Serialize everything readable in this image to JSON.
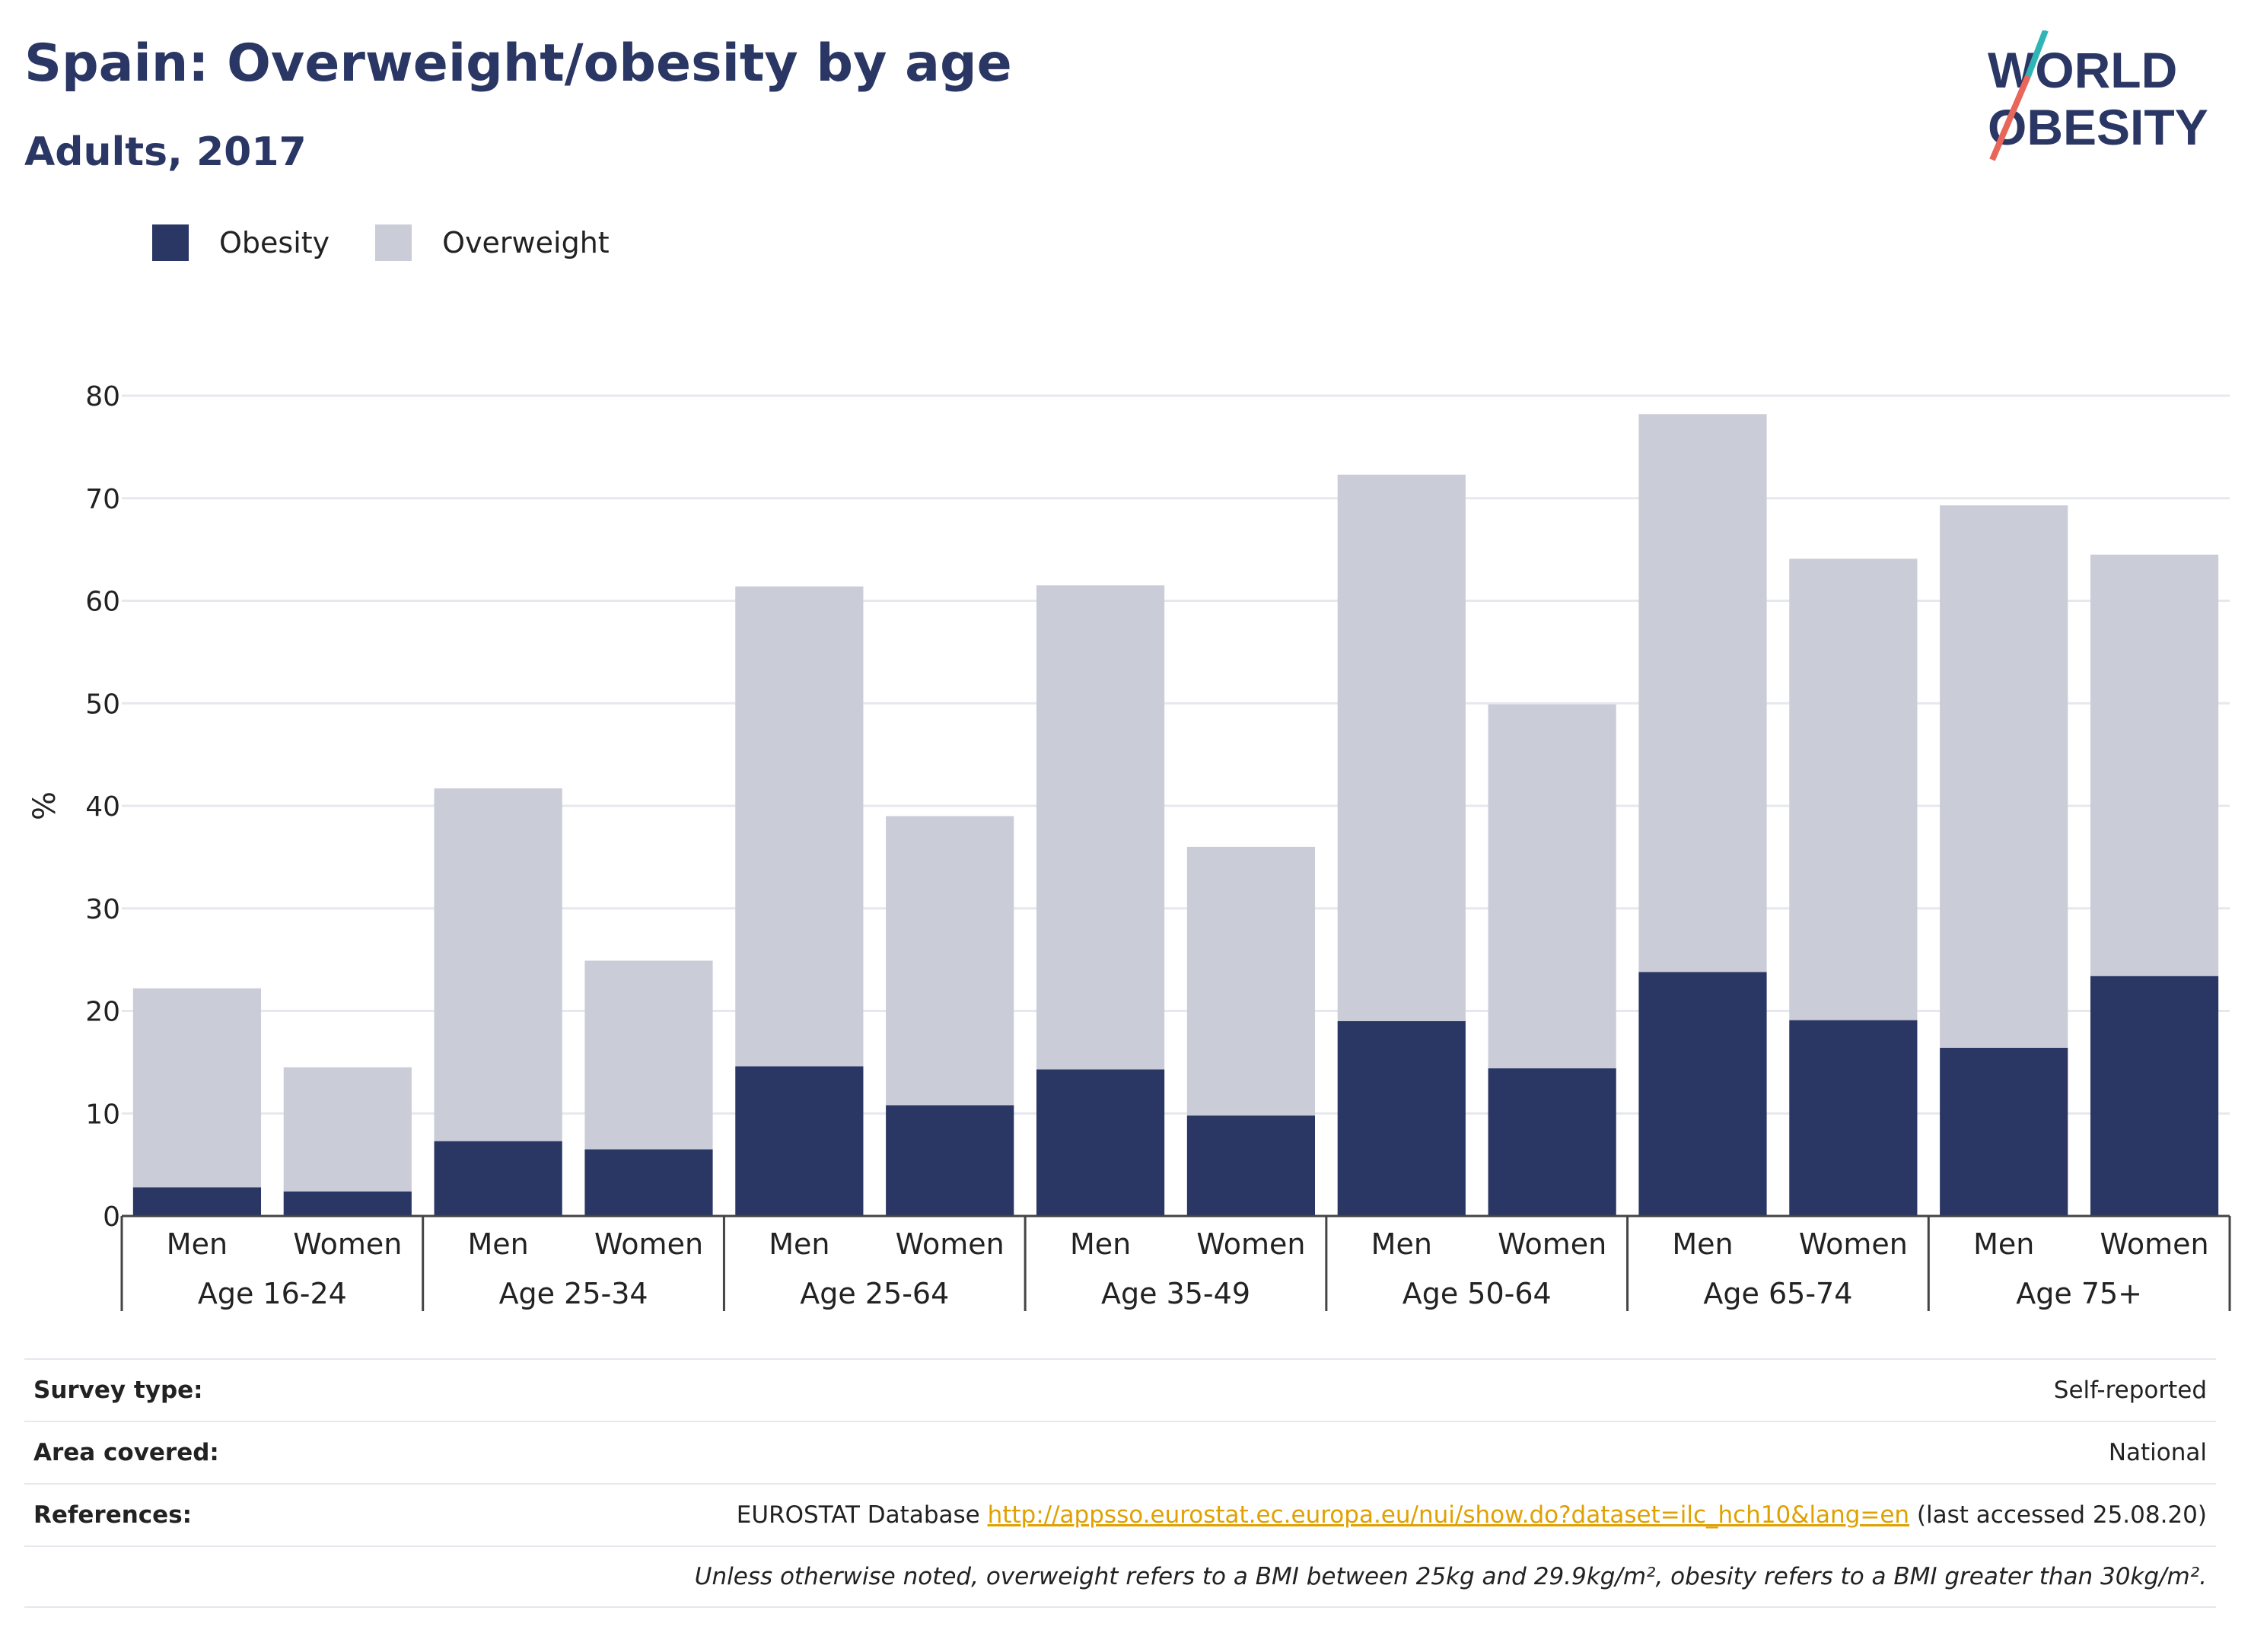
{
  "header": {
    "title": "Spain: Overweight/obesity by age",
    "subtitle": "Adults, 2017",
    "logo_line1": "WORLD",
    "logo_line2": "OBESITY"
  },
  "legend": [
    {
      "label": "Obesity",
      "color": "#2a3663"
    },
    {
      "label": "Overweight",
      "color": "#caccd8"
    }
  ],
  "chart_data": {
    "type": "bar",
    "stacked": true,
    "ylabel": "%",
    "ylim": [
      0,
      80
    ],
    "yticks": [
      0,
      10,
      20,
      30,
      40,
      50,
      60,
      70,
      80
    ],
    "grid": true,
    "legend_position": "top-left",
    "groups": [
      "Age 16-24",
      "Age 25-34",
      "Age 25-64",
      "Age 35-49",
      "Age 50-64",
      "Age 65-74",
      "Age 75+"
    ],
    "subcategories": [
      "Men",
      "Women"
    ],
    "series": [
      {
        "name": "Obesity",
        "color": "#2a3663",
        "values": [
          2.8,
          2.4,
          7.3,
          6.5,
          14.6,
          10.8,
          14.3,
          9.8,
          19.0,
          14.4,
          23.8,
          19.1,
          16.4,
          23.4
        ]
      },
      {
        "name": "Overweight",
        "color": "#caccd8",
        "values": [
          19.4,
          12.1,
          34.4,
          18.4,
          46.8,
          28.2,
          47.2,
          26.2,
          53.3,
          35.5,
          54.4,
          45.0,
          52.9,
          41.1
        ]
      }
    ]
  },
  "meta": {
    "survey_type_label": "Survey type:",
    "survey_type_value": "Self-reported",
    "area_label": "Area covered:",
    "area_value": "National",
    "references_label": "References:",
    "references_prefix": "EUROSTAT Database ",
    "references_link": "http://appsso.eurostat.ec.europa.eu/nui/show.do?dataset=ilc_hch10&lang=en",
    "references_suffix": " (last accessed 25.08.20)",
    "note": "Unless otherwise noted, overweight refers to a BMI between 25kg and 29.9kg/m², obesity refers to a BMI greater than 30kg/m²."
  }
}
